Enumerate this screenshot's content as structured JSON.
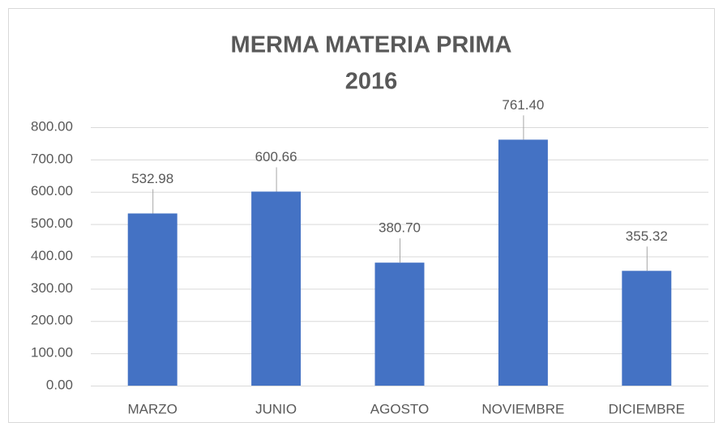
{
  "chart_data": {
    "type": "bar",
    "title": [
      "MERMA MATERIA PRIMA",
      "2016"
    ],
    "categories": [
      "MARZO",
      "JUNIO",
      "AGOSTO",
      "NOVIEMBRE",
      "DICIEMBRE"
    ],
    "values": [
      532.98,
      600.66,
      380.7,
      761.4,
      355.32
    ],
    "value_labels": [
      "532.98",
      "600.66",
      "380.70",
      "761.40",
      "355.32"
    ],
    "color": "#4472c4",
    "ylim": [
      0,
      800
    ],
    "yticks": [
      {
        "value": 0,
        "label": "0.00"
      },
      {
        "value": 100,
        "label": "100.00"
      },
      {
        "value": 200,
        "label": "200.00"
      },
      {
        "value": 300,
        "label": "300.00"
      },
      {
        "value": 400,
        "label": "400.00"
      },
      {
        "value": 500,
        "label": "500.00"
      },
      {
        "value": 600,
        "label": "600.00"
      },
      {
        "value": 700,
        "label": "700.00"
      },
      {
        "value": 800,
        "label": "800.00"
      }
    ],
    "grid": true
  }
}
